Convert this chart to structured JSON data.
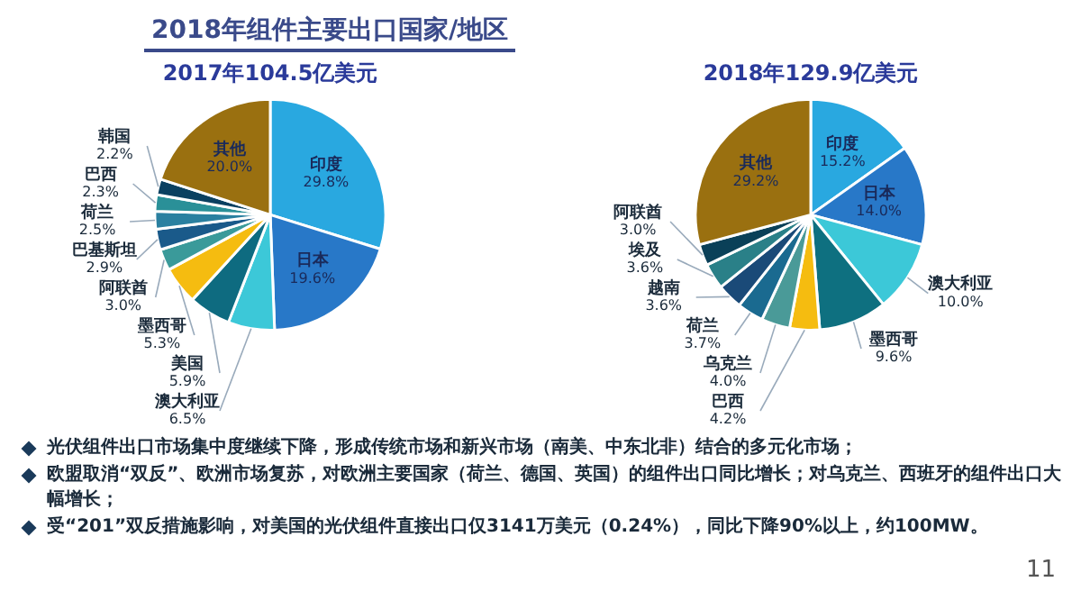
{
  "chart_data": [
    {
      "type": "pie",
      "title": "2017年104.5亿美元",
      "categories": [
        "印度",
        "日本",
        "澳大利亚",
        "美国",
        "墨西哥",
        "阿联酋",
        "巴基斯坦",
        "荷兰",
        "巴西",
        "韩国",
        "其他"
      ],
      "values": [
        29.8,
        19.6,
        6.5,
        5.9,
        5.3,
        3.0,
        2.9,
        2.5,
        2.3,
        2.2,
        20.0
      ],
      "colors": [
        "#29a8e0",
        "#2878c8",
        "#3cc8d8",
        "#0e6b80",
        "#f5bc10",
        "#3a9a9a",
        "#1a5a8a",
        "#2a80a0",
        "#2a9098",
        "#0a4060",
        "#9a7010"
      ],
      "value_labels": [
        "29.8%",
        "19.6%",
        "6.5%",
        "5.9%",
        "5.3%",
        "3.0%",
        "2.9%",
        "2.5%",
        "2.3%",
        "2.2%",
        "20.0%"
      ],
      "annotations": [
        "2018年组件主要出口国家/地区",
        "光伏组件出口市场集中度继续下降，形成传统市场和新兴市场（南美、中东北非）结合的多元化市场；",
        "欧盟取消“双反”、欧洲市场复苏，对欧洲主要国家（荷兰、德国、英国）的组件出口同比增长；对乌克兰、西班牙的组件出口大幅增长；",
        "受“201”双反措施影响，对美国的光伏组件直接出口仅3141万美元（0.24%），同比下降90%以上，约100MW。",
        "11"
      ]
    },
    {
      "type": "pie",
      "title": "2018年129.9亿美元",
      "categories": [
        "印度",
        "日本",
        "澳大利亚",
        "墨西哥",
        "巴西",
        "乌克兰",
        "荷兰",
        "越南",
        "埃及",
        "阿联酋",
        "其他"
      ],
      "values": [
        15.2,
        14.0,
        10.0,
        9.6,
        4.2,
        4.0,
        3.7,
        3.6,
        3.6,
        3.0,
        29.2
      ],
      "colors": [
        "#29a8e0",
        "#2878c8",
        "#3cc8d8",
        "#0e7080",
        "#f5bc10",
        "#4a9a98",
        "#1a6a90",
        "#1a4a78",
        "#2a8088",
        "#0a4058",
        "#9a7010"
      ],
      "value_labels": [
        "15.2%",
        "14.0%",
        "10.0%",
        "9.6%",
        "4.2%",
        "4.0%",
        "3.7%",
        "3.6%",
        "3.6%",
        "3.0%",
        "29.2%"
      ]
    }
  ]
}
